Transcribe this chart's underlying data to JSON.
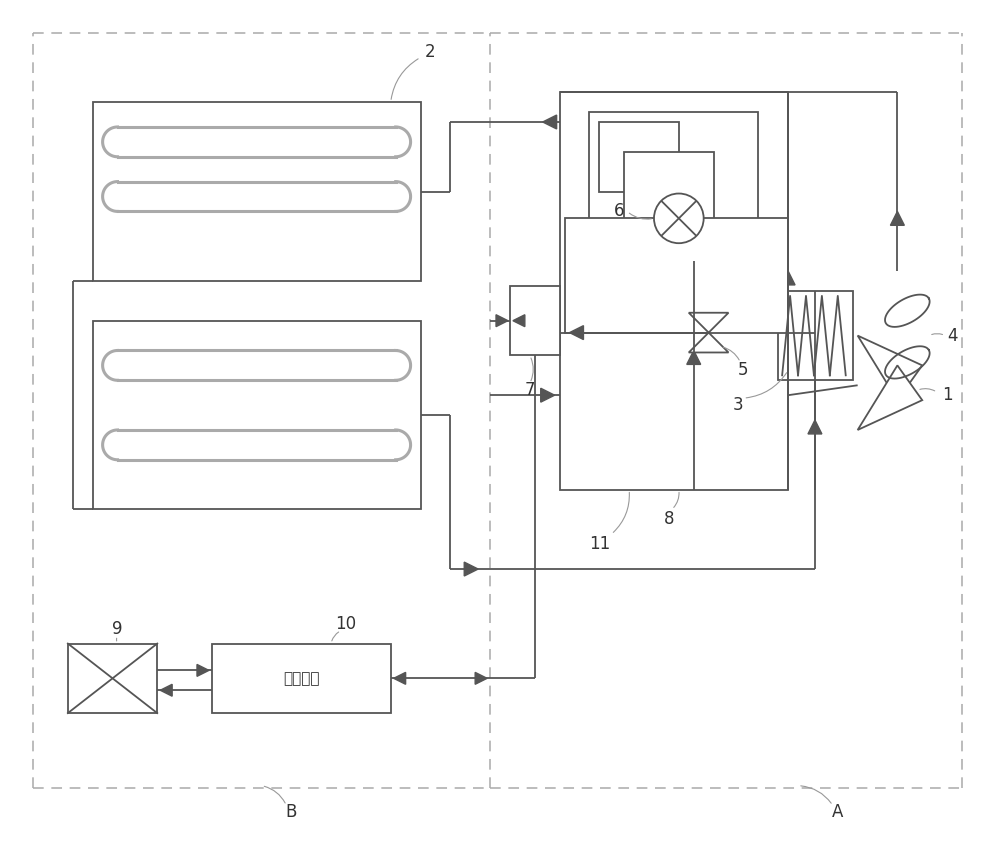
{
  "lc": "#555555",
  "dc": "#aaaaaa",
  "tc": "#333333",
  "lw": 1.3,
  "ctrl_text": "控制系统",
  "coil_color": "#aaaaaa",
  "coil_lw": 2.2
}
